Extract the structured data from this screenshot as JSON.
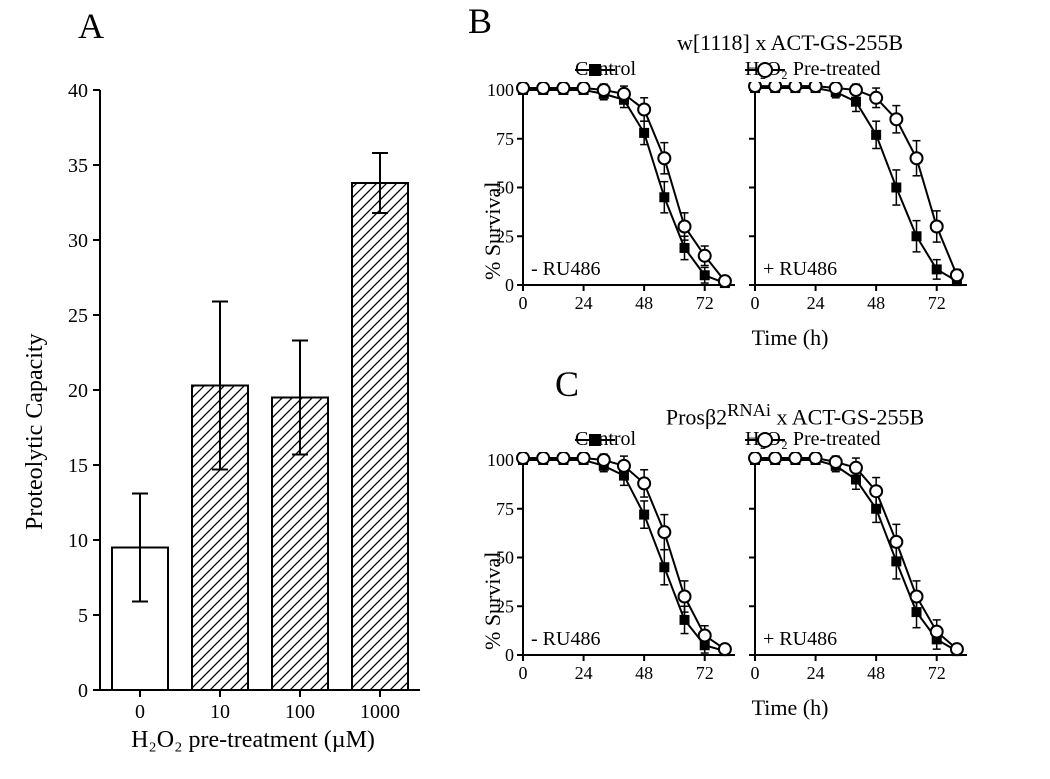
{
  "panel_A": {
    "label": "A",
    "type": "bar",
    "x_label": "H₂O₂ pre-treatment (µM)",
    "y_label": "Proteolytic Capacity",
    "categories": [
      "0",
      "10",
      "100",
      "1000"
    ],
    "values": [
      9.5,
      20.3,
      19.5,
      33.8
    ],
    "error": [
      3.6,
      5.6,
      3.8,
      2.0
    ],
    "bar_fill": [
      "#ffffff",
      "hatch",
      "hatch",
      "hatch"
    ],
    "ylim": [
      0,
      40
    ],
    "ytick_step": 5,
    "bar_color": "#000000",
    "hatch_color": "#000000",
    "background": "#ffffff",
    "label_fontsize": 36,
    "axis_fontsize": 24,
    "tick_fontsize": 20,
    "bar_width": 0.7,
    "line_width": 2
  },
  "panel_B": {
    "label": "B",
    "title": "w[1118] x ACT-GS-255B",
    "type": "line",
    "legend": {
      "control": "Control",
      "treated": "H₂O₂ Pre-treated"
    },
    "y_label": "% Survival",
    "x_label": "Time (h)",
    "xlim": [
      0,
      84
    ],
    "xtick_step": 24,
    "ylim": [
      0,
      100
    ],
    "ytick_step": 25,
    "marker_control": "filled-square",
    "marker_treated": "open-circle",
    "line_color": "#000000",
    "marker_size": 8,
    "line_width": 2,
    "error_cap": 4,
    "left": {
      "inset": "- RU486",
      "x": [
        0,
        8,
        16,
        24,
        32,
        40,
        48,
        56,
        64,
        72,
        80
      ],
      "control_y": [
        100,
        100,
        100,
        100,
        98,
        95,
        78,
        45,
        19,
        5,
        1
      ],
      "control_err": [
        0,
        2,
        2,
        2,
        3,
        4,
        6,
        8,
        6,
        4,
        2
      ],
      "treated_y": [
        101,
        101,
        101,
        101,
        100,
        98,
        90,
        65,
        30,
        15,
        2
      ],
      "treated_err": [
        0,
        2,
        2,
        2,
        3,
        4,
        6,
        8,
        7,
        5,
        2
      ]
    },
    "right": {
      "inset": "+ RU486",
      "x": [
        0,
        8,
        16,
        24,
        32,
        40,
        48,
        56,
        64,
        72,
        80
      ],
      "control_y": [
        101,
        101,
        101,
        101,
        99,
        94,
        77,
        50,
        25,
        8,
        2
      ],
      "control_err": [
        0,
        2,
        2,
        2,
        3,
        5,
        7,
        9,
        8,
        5,
        2
      ],
      "treated_y": [
        102,
        102,
        102,
        102,
        101,
        100,
        96,
        85,
        65,
        30,
        5
      ],
      "treated_err": [
        0,
        2,
        2,
        2,
        3,
        4,
        5,
        7,
        9,
        8,
        3
      ]
    }
  },
  "panel_C": {
    "label": "C",
    "title_prefix": "Prosβ2",
    "title_super": "RNAi",
    "title_suffix": " x ACT-GS-255B",
    "type": "line",
    "legend": {
      "control": "Control",
      "treated": "H₂O₂ Pre-treated"
    },
    "y_label": "% Survival",
    "x_label": "Time (h)",
    "xlim": [
      0,
      84
    ],
    "xtick_step": 24,
    "ylim": [
      0,
      100
    ],
    "ytick_step": 25,
    "marker_control": "filled-square",
    "marker_treated": "open-circle",
    "line_color": "#000000",
    "marker_size": 8,
    "line_width": 2,
    "error_cap": 4,
    "left": {
      "inset": "- RU486",
      "x": [
        0,
        8,
        16,
        24,
        32,
        40,
        48,
        56,
        64,
        72,
        80
      ],
      "control_y": [
        100,
        100,
        100,
        100,
        97,
        92,
        72,
        45,
        18,
        5,
        2
      ],
      "control_err": [
        0,
        2,
        2,
        2,
        3,
        5,
        7,
        9,
        7,
        4,
        2
      ],
      "treated_y": [
        101,
        101,
        101,
        101,
        100,
        97,
        88,
        63,
        30,
        10,
        3
      ],
      "treated_err": [
        0,
        2,
        2,
        2,
        3,
        5,
        7,
        9,
        8,
        5,
        2
      ]
    },
    "right": {
      "inset": "+ RU486",
      "x": [
        0,
        8,
        16,
        24,
        32,
        40,
        48,
        56,
        64,
        72,
        80
      ],
      "control_y": [
        100,
        100,
        100,
        100,
        97,
        90,
        75,
        48,
        22,
        8,
        2
      ],
      "control_err": [
        0,
        2,
        2,
        2,
        3,
        5,
        7,
        9,
        8,
        5,
        2
      ],
      "treated_y": [
        101,
        101,
        101,
        101,
        99,
        96,
        84,
        58,
        30,
        12,
        3
      ],
      "treated_err": [
        0,
        2,
        2,
        2,
        3,
        5,
        7,
        9,
        8,
        6,
        2
      ]
    }
  }
}
